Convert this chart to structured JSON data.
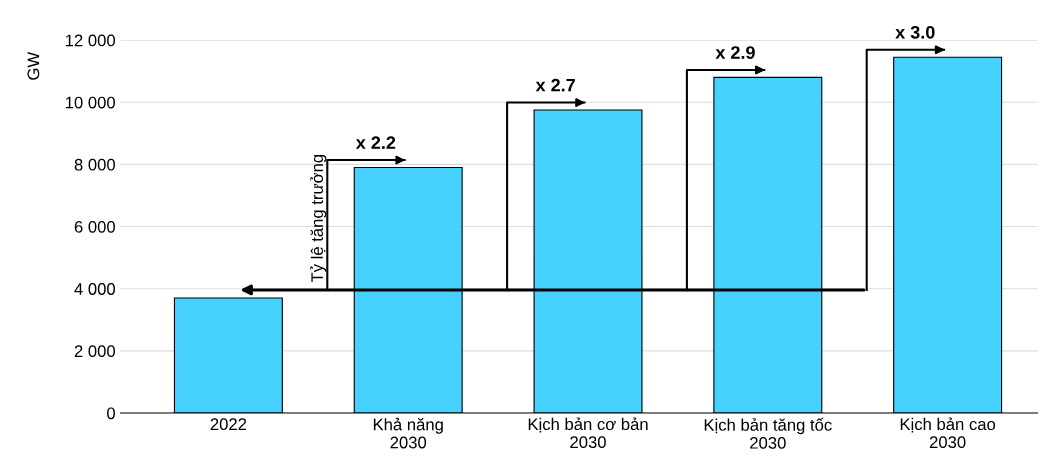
{
  "chart_data": {
    "type": "bar",
    "ylabel": "GW",
    "categories": [
      "2022",
      "Khả năng\n2030",
      "Kịch bản cơ bản\n2030",
      "Kịch bản tăng tốc\n2030",
      "Kịch bản cao\n2030"
    ],
    "values": [
      3700,
      7900,
      9750,
      10800,
      11450
    ],
    "color": "#47d1ff",
    "ylim": [
      0,
      12000
    ],
    "yticks": [
      0,
      {
        "value": 2000,
        "label": "2 000"
      },
      {
        "value": 4000,
        "label": "4 000"
      },
      {
        "value": 6000,
        "label": "6 000"
      },
      {
        "value": 8000,
        "label": "8 000"
      },
      {
        "value": 10000,
        "label": "10 000"
      },
      {
        "value": 12000,
        "label": "12 000"
      }
    ],
    "grid": "y",
    "annotations": [
      "Tỷ lệ tăng trưởng",
      "x 2.2",
      "x 2.7",
      "x 2.9",
      "x 3.0"
    ]
  }
}
